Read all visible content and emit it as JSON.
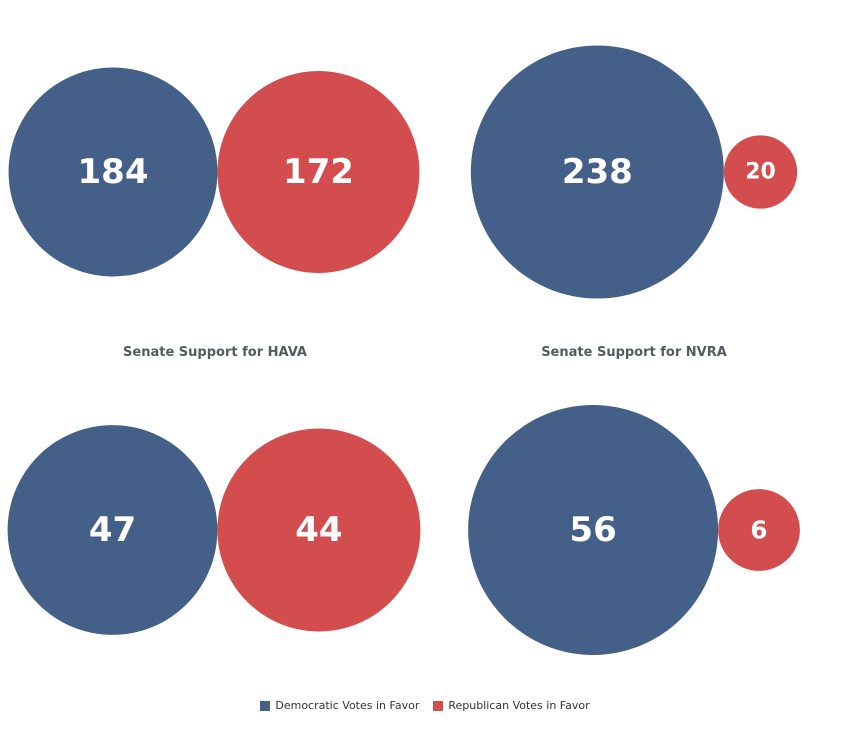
{
  "colors": {
    "democratic": "#445f88",
    "republican": "#d34d4f",
    "title": "#555a60"
  },
  "chart_data": [
    {
      "type": "bubble",
      "title": "",
      "series": [
        {
          "name": "Democratic Votes in Favor",
          "value": 184
        },
        {
          "name": "Republican Votes in Favor",
          "value": 172
        }
      ]
    },
    {
      "type": "bubble",
      "title": "",
      "series": [
        {
          "name": "Democratic Votes in Favor",
          "value": 238
        },
        {
          "name": "Republican Votes in Favor",
          "value": 20
        }
      ]
    },
    {
      "type": "bubble",
      "title": "Senate Support for HAVA",
      "series": [
        {
          "name": "Democratic Votes in Favor",
          "value": 47
        },
        {
          "name": "Republican Votes in Favor",
          "value": 44
        }
      ]
    },
    {
      "type": "bubble",
      "title": "Senate Support for NVRA",
      "series": [
        {
          "name": "Democratic Votes in Favor",
          "value": 56
        },
        {
          "name": "Republican Votes in Favor",
          "value": 6
        }
      ]
    }
  ],
  "legend": [
    {
      "label": "Democratic Votes in Favor",
      "color": "#445f88"
    },
    {
      "label": "Republican Votes in Favor",
      "color": "#d34d4f"
    }
  ]
}
